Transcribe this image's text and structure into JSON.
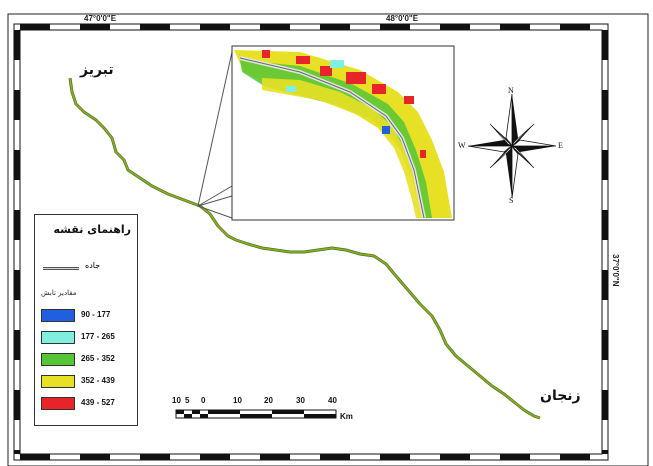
{
  "coordinates": {
    "top_left": "47°0'0\"E",
    "top_right": "48°0'0\"E",
    "right": "37°0'0\"N"
  },
  "cities": {
    "north": "تبریز",
    "south": "زنجان"
  },
  "legend": {
    "title": "راهنمای نقشه",
    "road_label": "جاده",
    "subtitle": "مقادیر تابش",
    "classes": [
      {
        "range": "90 - 177",
        "color": "#1f5fe0"
      },
      {
        "range": "177 - 265",
        "color": "#7ff0df"
      },
      {
        "range": "265 - 352",
        "color": "#55c536"
      },
      {
        "range": "352 - 439",
        "color": "#e8e025"
      },
      {
        "range": "439 - 527",
        "color": "#e8242b"
      }
    ]
  },
  "scale": {
    "ticks": [
      "10",
      "5",
      "0",
      "10",
      "20",
      "30",
      "40"
    ],
    "unit": "Km"
  },
  "compass": {
    "n": "N",
    "s": "S",
    "e": "E",
    "w": "W"
  },
  "colors": {
    "route": "#9aa61e",
    "route_shadow": "#3d7d2a"
  }
}
